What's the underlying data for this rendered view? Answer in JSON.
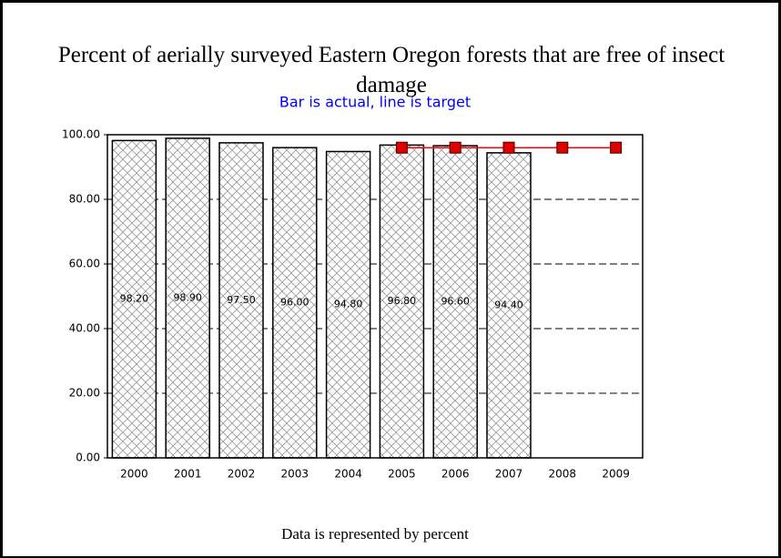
{
  "chart_data": {
    "type": "bar",
    "title": "Percent of aerially surveyed Eastern Oregon forests that are free of insect damage",
    "subtitle": "Bar is actual, line is target",
    "footer": "Data is represented by percent",
    "categories": [
      "2000",
      "2001",
      "2002",
      "2003",
      "2004",
      "2005",
      "2006",
      "2007",
      "2008",
      "2009"
    ],
    "values": [
      98.2,
      98.9,
      97.5,
      96.0,
      94.8,
      96.8,
      96.6,
      94.4,
      null,
      null
    ],
    "value_labels": [
      "98.20",
      "98.90",
      "97.50",
      "96.00",
      "94.80",
      "96.80",
      "96.60",
      "94.40",
      null,
      null
    ],
    "target": [
      null,
      null,
      null,
      null,
      null,
      96,
      96,
      96,
      96,
      96
    ],
    "line_color": "#ff0000",
    "marker_color": "#e00000",
    "ylim": [
      0,
      100
    ],
    "yticks": [
      {
        "value": 0,
        "label": "0.00"
      },
      {
        "value": 20,
        "label": "20.00"
      },
      {
        "value": 40,
        "label": "40.00"
      },
      {
        "value": 60,
        "label": "60.00"
      },
      {
        "value": 80,
        "label": "80.00"
      },
      {
        "value": 100,
        "label": "100.00"
      }
    ],
    "grid": true
  }
}
